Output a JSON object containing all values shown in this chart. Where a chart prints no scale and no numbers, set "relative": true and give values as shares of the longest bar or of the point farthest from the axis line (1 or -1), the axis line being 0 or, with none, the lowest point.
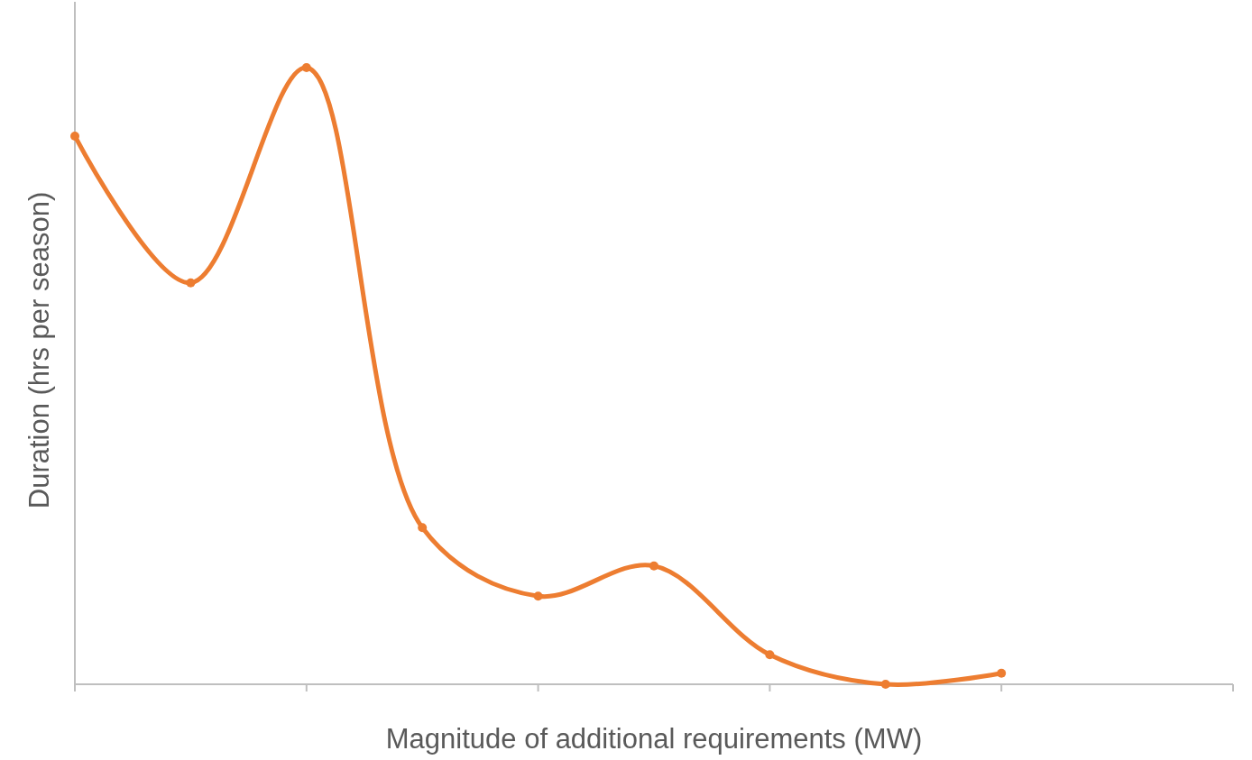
{
  "chart_data": {
    "type": "line",
    "relative": true,
    "xlabel": "Magnitude of additional requirements (MW)",
    "ylabel": "Duration (hrs per season)",
    "categories": [
      null,
      null,
      null,
      null,
      null,
      null,
      null,
      null,
      null,
      null,
      null
    ],
    "series": [
      {
        "color": "#ed7d31",
        "values": [
          0.889,
          0.651,
          1,
          0.254,
          0.143,
          0.192,
          0.048,
          0,
          0.018,
          null,
          null
        ]
      }
    ],
    "marker": "circle",
    "line_style": "solid",
    "grid": false,
    "legend": false
  }
}
